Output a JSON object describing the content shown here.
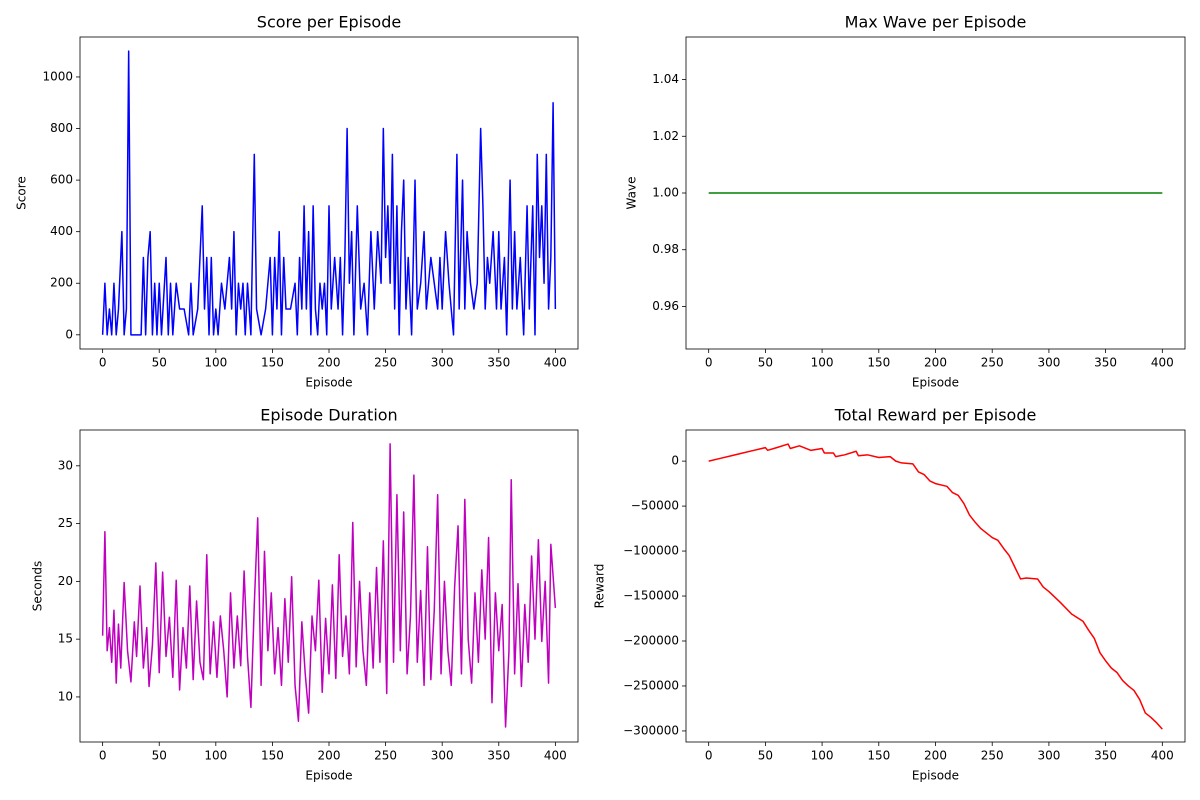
{
  "chart_data": [
    {
      "type": "line",
      "title": "Score per Episode",
      "x_label": "Episode",
      "y_label": "Score",
      "color": "#0000ff",
      "xlim": [
        -20,
        420
      ],
      "ylim": [
        -55,
        1155
      ],
      "xticks": [
        0,
        50,
        100,
        150,
        200,
        250,
        300,
        350,
        400
      ],
      "yticks": [
        0,
        200,
        400,
        600,
        800,
        1000
      ],
      "x": [
        0,
        2,
        4,
        6,
        8,
        10,
        12,
        14,
        17,
        19,
        21,
        23,
        25,
        30,
        34,
        36,
        38,
        40,
        42,
        44,
        46,
        48,
        50,
        52,
        56,
        58,
        60,
        62,
        65,
        68,
        72,
        76,
        78,
        80,
        84,
        86,
        88,
        90,
        92,
        94,
        96,
        98,
        100,
        102,
        105,
        108,
        112,
        114,
        116,
        118,
        120,
        122,
        124,
        126,
        128,
        131,
        134,
        136,
        140,
        144,
        148,
        150,
        152,
        154,
        156,
        158,
        160,
        162,
        166,
        170,
        172,
        174,
        176,
        178,
        180,
        182,
        184,
        186,
        188,
        190,
        192,
        194,
        196,
        198,
        200,
        202,
        205,
        208,
        210,
        212,
        214,
        216,
        218,
        220,
        222,
        225,
        228,
        231,
        234,
        237,
        240,
        243,
        246,
        248,
        250,
        252,
        254,
        256,
        258,
        260,
        262,
        264,
        266,
        268,
        270,
        273,
        276,
        278,
        281,
        284,
        286,
        290,
        293,
        296,
        298,
        300,
        303,
        306,
        310,
        313,
        315,
        318,
        320,
        322,
        325,
        328,
        331,
        334,
        336,
        338,
        340,
        342,
        345,
        348,
        350,
        352,
        355,
        357,
        360,
        362,
        364,
        366,
        369,
        372,
        375,
        377,
        380,
        382,
        384,
        386,
        388,
        390,
        392,
        394,
        396,
        398,
        400
      ],
      "values": [
        0,
        200,
        0,
        100,
        0,
        200,
        0,
        100,
        400,
        0,
        100,
        1100,
        0,
        0,
        0,
        300,
        0,
        300,
        400,
        0,
        200,
        0,
        200,
        0,
        300,
        0,
        200,
        0,
        200,
        100,
        100,
        0,
        200,
        0,
        100,
        300,
        500,
        100,
        300,
        0,
        300,
        0,
        100,
        0,
        200,
        100,
        300,
        100,
        400,
        0,
        200,
        100,
        200,
        0,
        200,
        0,
        700,
        100,
        0,
        100,
        300,
        0,
        300,
        100,
        400,
        0,
        300,
        100,
        100,
        200,
        0,
        300,
        100,
        500,
        100,
        400,
        0,
        500,
        100,
        0,
        200,
        100,
        200,
        0,
        500,
        100,
        300,
        100,
        300,
        0,
        300,
        800,
        200,
        400,
        0,
        500,
        100,
        200,
        0,
        400,
        100,
        400,
        200,
        800,
        300,
        500,
        200,
        700,
        100,
        500,
        0,
        400,
        600,
        100,
        300,
        0,
        600,
        100,
        200,
        400,
        100,
        300,
        200,
        100,
        300,
        100,
        400,
        200,
        0,
        700,
        100,
        600,
        100,
        400,
        200,
        100,
        200,
        800,
        500,
        100,
        300,
        200,
        400,
        100,
        400,
        100,
        300,
        0,
        600,
        100,
        400,
        100,
        300,
        0,
        500,
        100,
        500,
        0,
        700,
        300,
        500,
        200,
        700,
        100,
        300,
        900,
        100
      ]
    },
    {
      "type": "line",
      "title": "Max Wave per Episode",
      "x_label": "Episode",
      "y_label": "Wave",
      "color": "#008000",
      "xlim": [
        -20,
        420
      ],
      "ylim": [
        0.945,
        1.055
      ],
      "xticks": [
        0,
        50,
        100,
        150,
        200,
        250,
        300,
        350,
        400
      ],
      "yticks": [
        0.96,
        0.98,
        {
          "value": 1,
          "label": "1.00"
        },
        1.02,
        1.04
      ],
      "x": [
        0,
        400
      ],
      "values": [
        1,
        1
      ]
    },
    {
      "type": "line",
      "title": "Episode Duration",
      "x_label": "Episode",
      "y_label": "Seconds",
      "color": "#bf00bf",
      "xlim": [
        -20,
        420
      ],
      "ylim": [
        6.1,
        33.1
      ],
      "xticks": [
        0,
        50,
        100,
        150,
        200,
        250,
        300,
        350,
        400
      ],
      "yticks": [
        10,
        15,
        20,
        25,
        30
      ],
      "x": [
        0,
        2,
        4,
        6,
        8,
        10,
        12,
        14,
        16,
        19,
        22,
        25,
        28,
        30,
        33,
        36,
        39,
        41,
        44,
        47,
        50,
        53,
        56,
        59,
        62,
        65,
        68,
        71,
        74,
        77,
        80,
        83,
        86,
        89,
        92,
        95,
        98,
        101,
        104,
        107,
        110,
        113,
        116,
        119,
        122,
        125,
        128,
        131,
        134,
        137,
        140,
        143,
        146,
        149,
        152,
        155,
        158,
        161,
        164,
        167,
        170,
        173,
        176,
        179,
        182,
        185,
        188,
        191,
        194,
        197,
        200,
        203,
        206,
        209,
        212,
        215,
        218,
        221,
        224,
        227,
        230,
        233,
        236,
        239,
        242,
        245,
        248,
        251,
        254,
        257,
        260,
        263,
        266,
        269,
        272,
        275,
        278,
        281,
        284,
        287,
        290,
        293,
        296,
        299,
        302,
        305,
        308,
        311,
        314,
        317,
        320,
        323,
        326,
        329,
        332,
        335,
        338,
        341,
        344,
        347,
        350,
        353,
        356,
        359,
        361,
        364,
        367,
        370,
        373,
        376,
        379,
        382,
        385,
        388,
        391,
        394,
        396,
        400
      ],
      "values": [
        15.3,
        24.3,
        14,
        16,
        13,
        17.5,
        11.2,
        16.3,
        12.5,
        19.9,
        14,
        11.3,
        16.5,
        13.5,
        19.6,
        12.5,
        16,
        10.9,
        14.5,
        21.6,
        12.1,
        20.8,
        13.5,
        16.9,
        11.7,
        20.1,
        10.6,
        16,
        12.5,
        19.6,
        11.5,
        18.3,
        13,
        11.5,
        22.3,
        12,
        16.5,
        11.7,
        17,
        14,
        10,
        19,
        12.5,
        17,
        12.7,
        20.9,
        13.5,
        9.1,
        18,
        25.5,
        11,
        22.6,
        14,
        19,
        12,
        16,
        11,
        18.5,
        13,
        20.4,
        11,
        7.9,
        16.5,
        12,
        8.6,
        17,
        14,
        20.1,
        10.4,
        16.8,
        12,
        19.7,
        11.6,
        22.3,
        13.5,
        17,
        12,
        25.1,
        12.6,
        20,
        14,
        11,
        19,
        12.5,
        21.2,
        13,
        23.5,
        10.3,
        31.9,
        13,
        27.5,
        14,
        26,
        12,
        17,
        29.2,
        13,
        19.2,
        11,
        23,
        11.5,
        17.5,
        27.5,
        12,
        20,
        14,
        11,
        19.5,
        24.8,
        12,
        27.1,
        15,
        11.2,
        19,
        13,
        21,
        15,
        23.8,
        9.5,
        19,
        14,
        18,
        7.4,
        14,
        28.8,
        12,
        19.8,
        10.9,
        18,
        13,
        22.2,
        15,
        23.6,
        14.8,
        20,
        11.2,
        23.2,
        17.7
      ]
    },
    {
      "type": "line",
      "title": "Total Reward per Episode",
      "x_label": "Episode",
      "y_label": "Reward",
      "color": "#ff0000",
      "xlim": [
        -20,
        420
      ],
      "ylim": [
        -312300,
        34600
      ],
      "xticks": [
        0,
        50,
        100,
        150,
        200,
        250,
        300,
        350,
        400
      ],
      "yticks": [
        0,
        {
          "value": -50000,
          "label": "−50000"
        },
        {
          "value": -100000,
          "label": "−100000"
        },
        {
          "value": -150000,
          "label": "−150000"
        },
        {
          "value": -200000,
          "label": "−200000"
        },
        {
          "value": -250000,
          "label": "−250000"
        },
        {
          "value": -300000,
          "label": "−300000"
        }
      ],
      "x": [
        0,
        10,
        20,
        30,
        40,
        50,
        52,
        60,
        70,
        72,
        80,
        90,
        100,
        102,
        110,
        112,
        120,
        130,
        132,
        140,
        150,
        160,
        165,
        170,
        180,
        185,
        190,
        195,
        200,
        210,
        215,
        220,
        225,
        230,
        235,
        240,
        245,
        250,
        255,
        260,
        265,
        270,
        275,
        280,
        290,
        295,
        300,
        310,
        320,
        330,
        335,
        340,
        345,
        350,
        355,
        360,
        365,
        370,
        375,
        380,
        385,
        390,
        395,
        400
      ],
      "values": [
        0,
        3000,
        6000,
        9000,
        12000,
        15000,
        12000,
        15000,
        19000,
        14000,
        17000,
        12000,
        14000,
        9000,
        9000,
        5000,
        7000,
        11000,
        6000,
        7000,
        4000,
        5000,
        0,
        -2000,
        -3000,
        -12000,
        -15000,
        -22000,
        -25000,
        -28000,
        -35000,
        -38000,
        -47000,
        -60000,
        -68000,
        -75000,
        -80000,
        -85000,
        -88000,
        -97000,
        -105000,
        -118000,
        -131000,
        -130000,
        -131000,
        -140000,
        -145000,
        -157000,
        -170000,
        -178000,
        -188000,
        -197000,
        -213000,
        -222000,
        -230000,
        -235000,
        -244000,
        -250000,
        -255000,
        -265000,
        -280000,
        -285000,
        -291000,
        -298000
      ]
    }
  ]
}
